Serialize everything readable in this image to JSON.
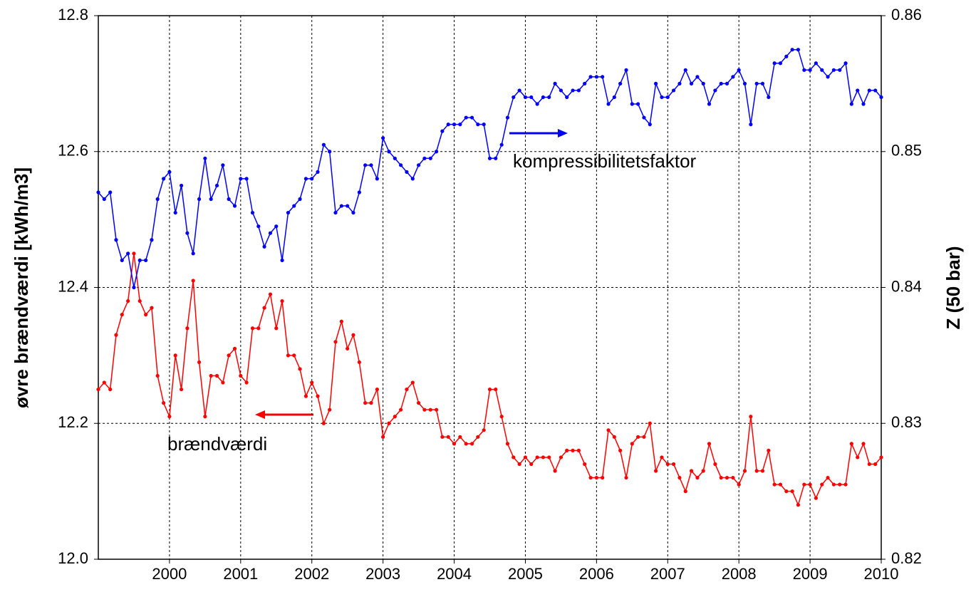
{
  "chart_data": {
    "type": "line",
    "ylabel": "øvre brændværdi [kWh/m3]",
    "y2label": "Z (50 bar)",
    "annotations": [
      "kompressibilitetsfaktor",
      "brændværdi"
    ],
    "xlim": [
      1999,
      2010
    ],
    "xticks": [
      2000,
      2001,
      2002,
      2003,
      2004,
      2005,
      2006,
      2007,
      2008,
      2009,
      2010
    ],
    "ylim": [
      12.0,
      12.8
    ],
    "yticks": [
      {
        "value": 12.0,
        "label": "12.0"
      },
      12.2,
      12.4,
      12.6,
      12.8
    ],
    "y2lim": [
      0.82,
      0.86
    ],
    "y2ticks": [
      0.82,
      0.83,
      0.84,
      0.85,
      0.86
    ],
    "grid": true,
    "x": [
      1999,
      1999.083,
      1999.167,
      1999.25,
      1999.333,
      1999.417,
      1999.5,
      1999.583,
      1999.667,
      1999.75,
      1999.833,
      1999.917,
      2000,
      2000.083,
      2000.167,
      2000.25,
      2000.333,
      2000.417,
      2000.5,
      2000.583,
      2000.667,
      2000.75,
      2000.833,
      2000.917,
      2001,
      2001.083,
      2001.167,
      2001.25,
      2001.333,
      2001.417,
      2001.5,
      2001.583,
      2001.667,
      2001.75,
      2001.833,
      2001.917,
      2002,
      2002.083,
      2002.167,
      2002.25,
      2002.333,
      2002.417,
      2002.5,
      2002.583,
      2002.667,
      2002.75,
      2002.833,
      2002.917,
      2003,
      2003.083,
      2003.167,
      2003.25,
      2003.333,
      2003.417,
      2003.5,
      2003.583,
      2003.667,
      2003.75,
      2003.833,
      2003.917,
      2004,
      2004.083,
      2004.167,
      2004.25,
      2004.333,
      2004.417,
      2004.5,
      2004.583,
      2004.667,
      2004.75,
      2004.833,
      2004.917,
      2005,
      2005.083,
      2005.167,
      2005.25,
      2005.333,
      2005.417,
      2005.5,
      2005.583,
      2005.667,
      2005.75,
      2005.833,
      2005.917,
      2006,
      2006.083,
      2006.167,
      2006.25,
      2006.333,
      2006.417,
      2006.5,
      2006.583,
      2006.667,
      2006.75,
      2006.833,
      2006.917,
      2007,
      2007.083,
      2007.167,
      2007.25,
      2007.333,
      2007.417,
      2007.5,
      2007.583,
      2007.667,
      2007.75,
      2007.833,
      2007.917,
      2008,
      2008.083,
      2008.167,
      2008.25,
      2008.333,
      2008.417,
      2008.5,
      2008.583,
      2008.667,
      2008.75,
      2008.833,
      2008.917,
      2009,
      2009.083,
      2009.167,
      2009.25,
      2009.333,
      2009.417,
      2009.5,
      2009.583,
      2009.667,
      2009.75,
      2009.833,
      2009.917,
      2010
    ],
    "series": [
      {
        "color": "#ff0000",
        "values": [
          12.25,
          12.26,
          12.25,
          12.33,
          12.36,
          12.38,
          12.45,
          12.38,
          12.36,
          12.37,
          12.27,
          12.23,
          12.21,
          12.3,
          12.25,
          12.34,
          12.41,
          12.29,
          12.21,
          12.27,
          12.27,
          12.26,
          12.3,
          12.31,
          12.27,
          12.26,
          12.34,
          12.34,
          12.37,
          12.39,
          12.34,
          12.38,
          12.3,
          12.3,
          12.28,
          12.24,
          12.26,
          12.24,
          12.2,
          12.22,
          12.32,
          12.35,
          12.31,
          12.33,
          12.29,
          12.23,
          12.23,
          12.25,
          12.18,
          12.2,
          12.21,
          12.22,
          12.25,
          12.26,
          12.23,
          12.22,
          12.22,
          12.22,
          12.18,
          12.18,
          12.17,
          12.18,
          12.17,
          12.17,
          12.18,
          12.19,
          12.25,
          12.25,
          12.21,
          12.17,
          12.15,
          12.14,
          12.15,
          12.14,
          12.15,
          12.15,
          12.15,
          12.13,
          12.15,
          12.16,
          12.16,
          12.16,
          12.14,
          12.12,
          12.12,
          12.12,
          12.19,
          12.18,
          12.16,
          12.12,
          12.17,
          12.18,
          12.18,
          12.2,
          12.13,
          12.15,
          12.14,
          12.14,
          12.12,
          12.1,
          12.13,
          12.12,
          12.13,
          12.17,
          12.14,
          12.12,
          12.12,
          12.12,
          12.11,
          12.13,
          12.21,
          12.13,
          12.13,
          12.16,
          12.11,
          12.11,
          12.1,
          12.1,
          12.08,
          12.11,
          12.11,
          12.09,
          12.11,
          12.12,
          12.11,
          12.11,
          12.11,
          12.17,
          12.15,
          12.17,
          12.14,
          12.14,
          12.15
        ]
      },
      {
        "color": "#0000ff",
        "axis": "y2",
        "values": [
          0.847,
          0.8465,
          0.847,
          0.8435,
          0.842,
          0.8425,
          0.84,
          0.842,
          0.842,
          0.8435,
          0.8465,
          0.848,
          0.8485,
          0.8455,
          0.8475,
          0.844,
          0.8425,
          0.8465,
          0.8495,
          0.8465,
          0.8475,
          0.849,
          0.8465,
          0.846,
          0.848,
          0.848,
          0.8455,
          0.8445,
          0.843,
          0.844,
          0.8445,
          0.842,
          0.8455,
          0.846,
          0.8465,
          0.848,
          0.848,
          0.8485,
          0.8505,
          0.85,
          0.8455,
          0.846,
          0.846,
          0.8455,
          0.847,
          0.849,
          0.849,
          0.848,
          0.851,
          0.85,
          0.8495,
          0.849,
          0.8485,
          0.848,
          0.849,
          0.8495,
          0.8495,
          0.85,
          0.8515,
          0.852,
          0.852,
          0.852,
          0.8525,
          0.8525,
          0.852,
          0.852,
          0.8495,
          0.8495,
          0.8505,
          0.8525,
          0.854,
          0.8545,
          0.854,
          0.854,
          0.8535,
          0.854,
          0.854,
          0.855,
          0.8545,
          0.854,
          0.8545,
          0.8545,
          0.855,
          0.8555,
          0.8555,
          0.8555,
          0.8535,
          0.854,
          0.855,
          0.856,
          0.8535,
          0.8535,
          0.8525,
          0.852,
          0.855,
          0.854,
          0.854,
          0.8545,
          0.855,
          0.856,
          0.855,
          0.8555,
          0.855,
          0.8535,
          0.8545,
          0.855,
          0.855,
          0.8555,
          0.856,
          0.855,
          0.852,
          0.855,
          0.855,
          0.854,
          0.8565,
          0.8565,
          0.857,
          0.8575,
          0.8575,
          0.856,
          0.856,
          0.8565,
          0.856,
          0.8555,
          0.856,
          0.856,
          0.8565,
          0.8535,
          0.8545,
          0.8535,
          0.8545,
          0.8545,
          0.854
        ]
      }
    ]
  }
}
